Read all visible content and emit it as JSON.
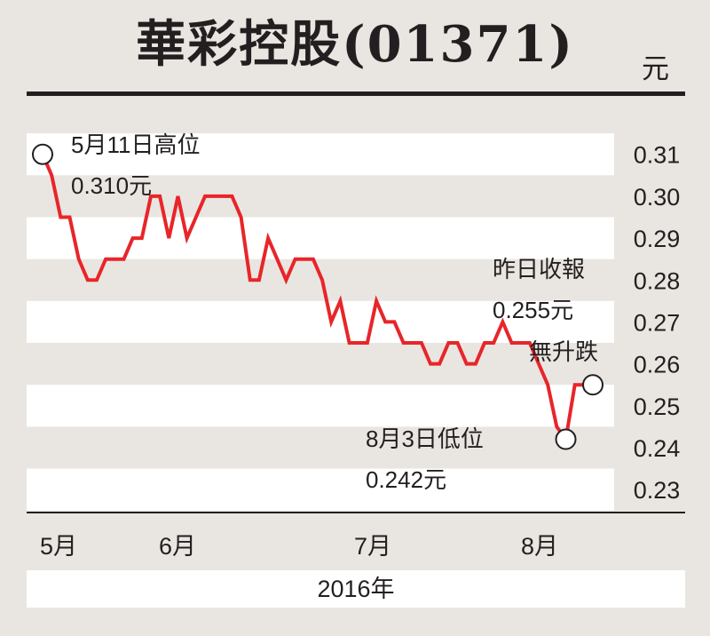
{
  "chart_data": {
    "type": "line",
    "title": "華彩控股(01371)",
    "unit": "元",
    "xlabel": "2016年",
    "x_tick_labels": [
      "5月",
      "6月",
      "7月",
      "8月"
    ],
    "y_ticks": [
      "0.31",
      "0.30",
      "0.29",
      "0.28",
      "0.27",
      "0.26",
      "0.25",
      "0.24",
      "0.23"
    ],
    "ylim": [
      0.226,
      0.318
    ],
    "series": [
      {
        "color": "#e8252a",
        "values": [
          0.31,
          0.305,
          0.295,
          0.295,
          0.285,
          0.28,
          0.28,
          0.285,
          0.285,
          0.285,
          0.29,
          0.29,
          0.3,
          0.3,
          0.29,
          0.3,
          0.29,
          0.295,
          0.3,
          0.3,
          0.3,
          0.3,
          0.295,
          0.28,
          0.28,
          0.29,
          0.285,
          0.28,
          0.285,
          0.285,
          0.285,
          0.28,
          0.27,
          0.275,
          0.265,
          0.265,
          0.265,
          0.275,
          0.27,
          0.27,
          0.265,
          0.265,
          0.265,
          0.26,
          0.26,
          0.265,
          0.265,
          0.26,
          0.26,
          0.265,
          0.265,
          0.27,
          0.265,
          0.265,
          0.265,
          0.26,
          0.255,
          0.245,
          0.242,
          0.255,
          0.255,
          0.255
        ]
      }
    ],
    "grid": "horizontal bands",
    "annotations": [
      {
        "line1": "5月11日高位",
        "line2": "0.310元"
      },
      {
        "line1": "8月3日低位",
        "line2": "0.242元"
      },
      {
        "line1": "昨日收報",
        "line2": "0.255元",
        "line3": "無升跌"
      }
    ]
  }
}
